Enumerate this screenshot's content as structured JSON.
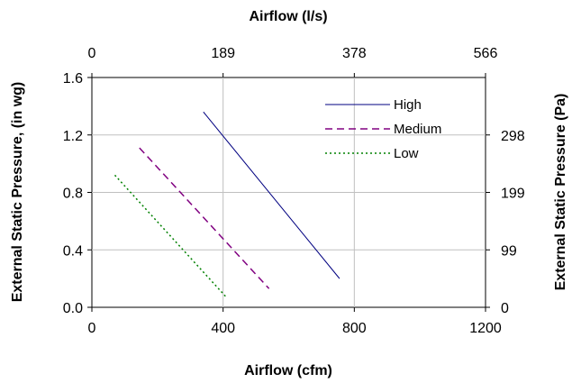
{
  "chart_data": {
    "type": "line",
    "xlabel": "Airflow (cfm)",
    "ylabel": "External Static Pressure, (in wg)",
    "x2label": "Airflow (l/s)",
    "y2label": "External Static Pressure (Pa)",
    "xlim": [
      0,
      1200
    ],
    "ylim": [
      0.0,
      1.6
    ],
    "x_ticks": [
      "0",
      "400",
      "800",
      "1200"
    ],
    "y_ticks": [
      "0.0",
      "0.4",
      "0.8",
      "1.2",
      "1.6"
    ],
    "x2_ticks": [
      "0",
      "189",
      "378",
      "566"
    ],
    "y2_ticks": [
      "0",
      "99",
      "199",
      "298"
    ],
    "grid": true,
    "legend_position": "top-right",
    "series": [
      {
        "name": "High",
        "color": "#000080",
        "dash": "solid",
        "x": [
          340,
          755
        ],
        "y": [
          1.36,
          0.2
        ]
      },
      {
        "name": "Medium",
        "color": "#800080",
        "dash": "dashed",
        "x": [
          145,
          540
        ],
        "y": [
          1.11,
          0.13
        ]
      },
      {
        "name": "Low",
        "color": "#008000",
        "dash": "dotted",
        "x": [
          70,
          410
        ],
        "y": [
          0.92,
          0.07
        ]
      }
    ]
  }
}
